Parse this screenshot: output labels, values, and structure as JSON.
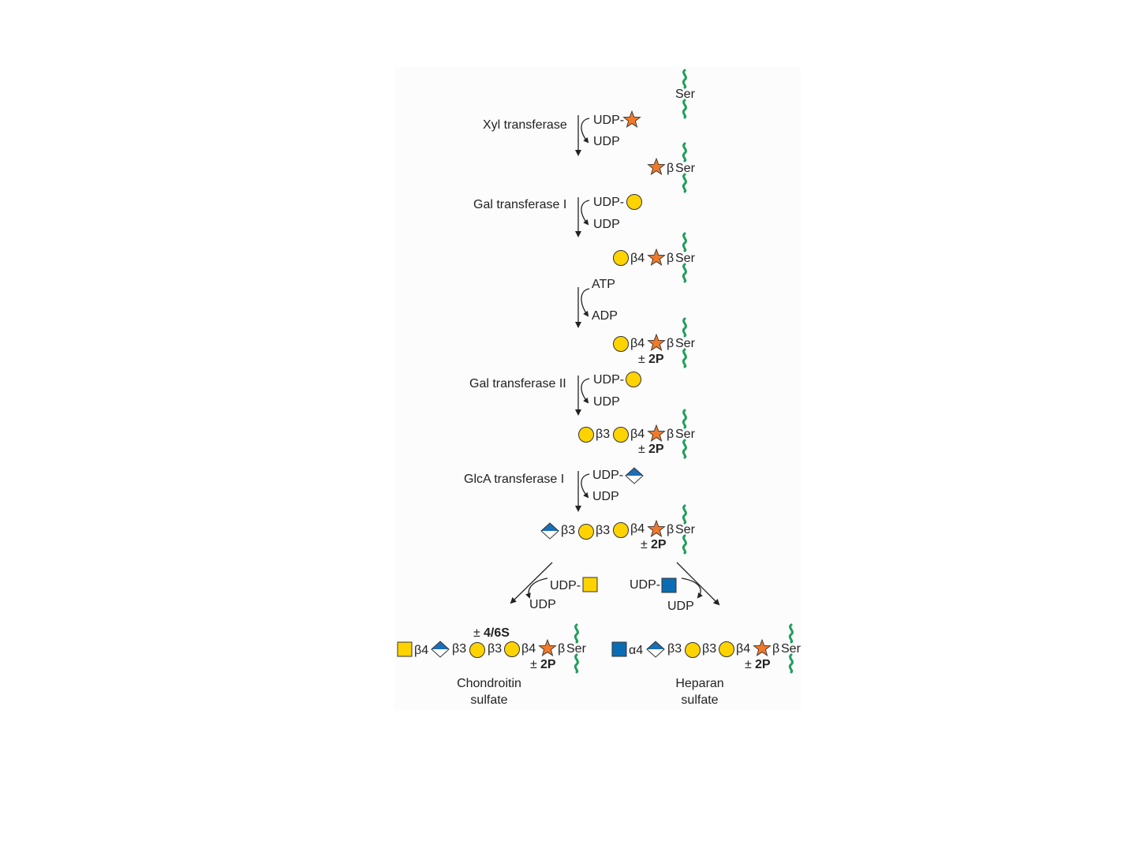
{
  "colors": {
    "xylose": "#f07a2a",
    "galactose": "#ffd300",
    "glcA": "#1a6fb5",
    "galNAc": "#ffd300",
    "glcNAc": "#0a6db3",
    "peptide": "#1f9e5a",
    "text": "#222222"
  },
  "icons": [
    "xylose-star-icon",
    "galactose-circle-icon",
    "glucuronic-acid-diamond-icon",
    "galnac-square-icon",
    "glcnac-square-icon",
    "peptide-wavy-icon"
  ],
  "serine": "Ser",
  "donors": {
    "udp": "UDP",
    "udp_dash": "UDP-",
    "atp": "ATP",
    "adp": "ADP"
  },
  "linkages": {
    "beta": "β",
    "b3": "β3",
    "b4": "β4",
    "a4": "α4"
  },
  "modifications": {
    "pm": "±",
    "phos": "2P",
    "sulfation": "4/6S"
  },
  "enzymes": {
    "xyl": "Xyl transferase",
    "gal1": "Gal transferase I",
    "gal2": "Gal transferase II",
    "glca": "GlcA transferase I"
  },
  "products": {
    "cs_line1": "Chondroitin",
    "cs_line2": "sulfate",
    "hs_line1": "Heparan",
    "hs_line2": "sulfate"
  }
}
